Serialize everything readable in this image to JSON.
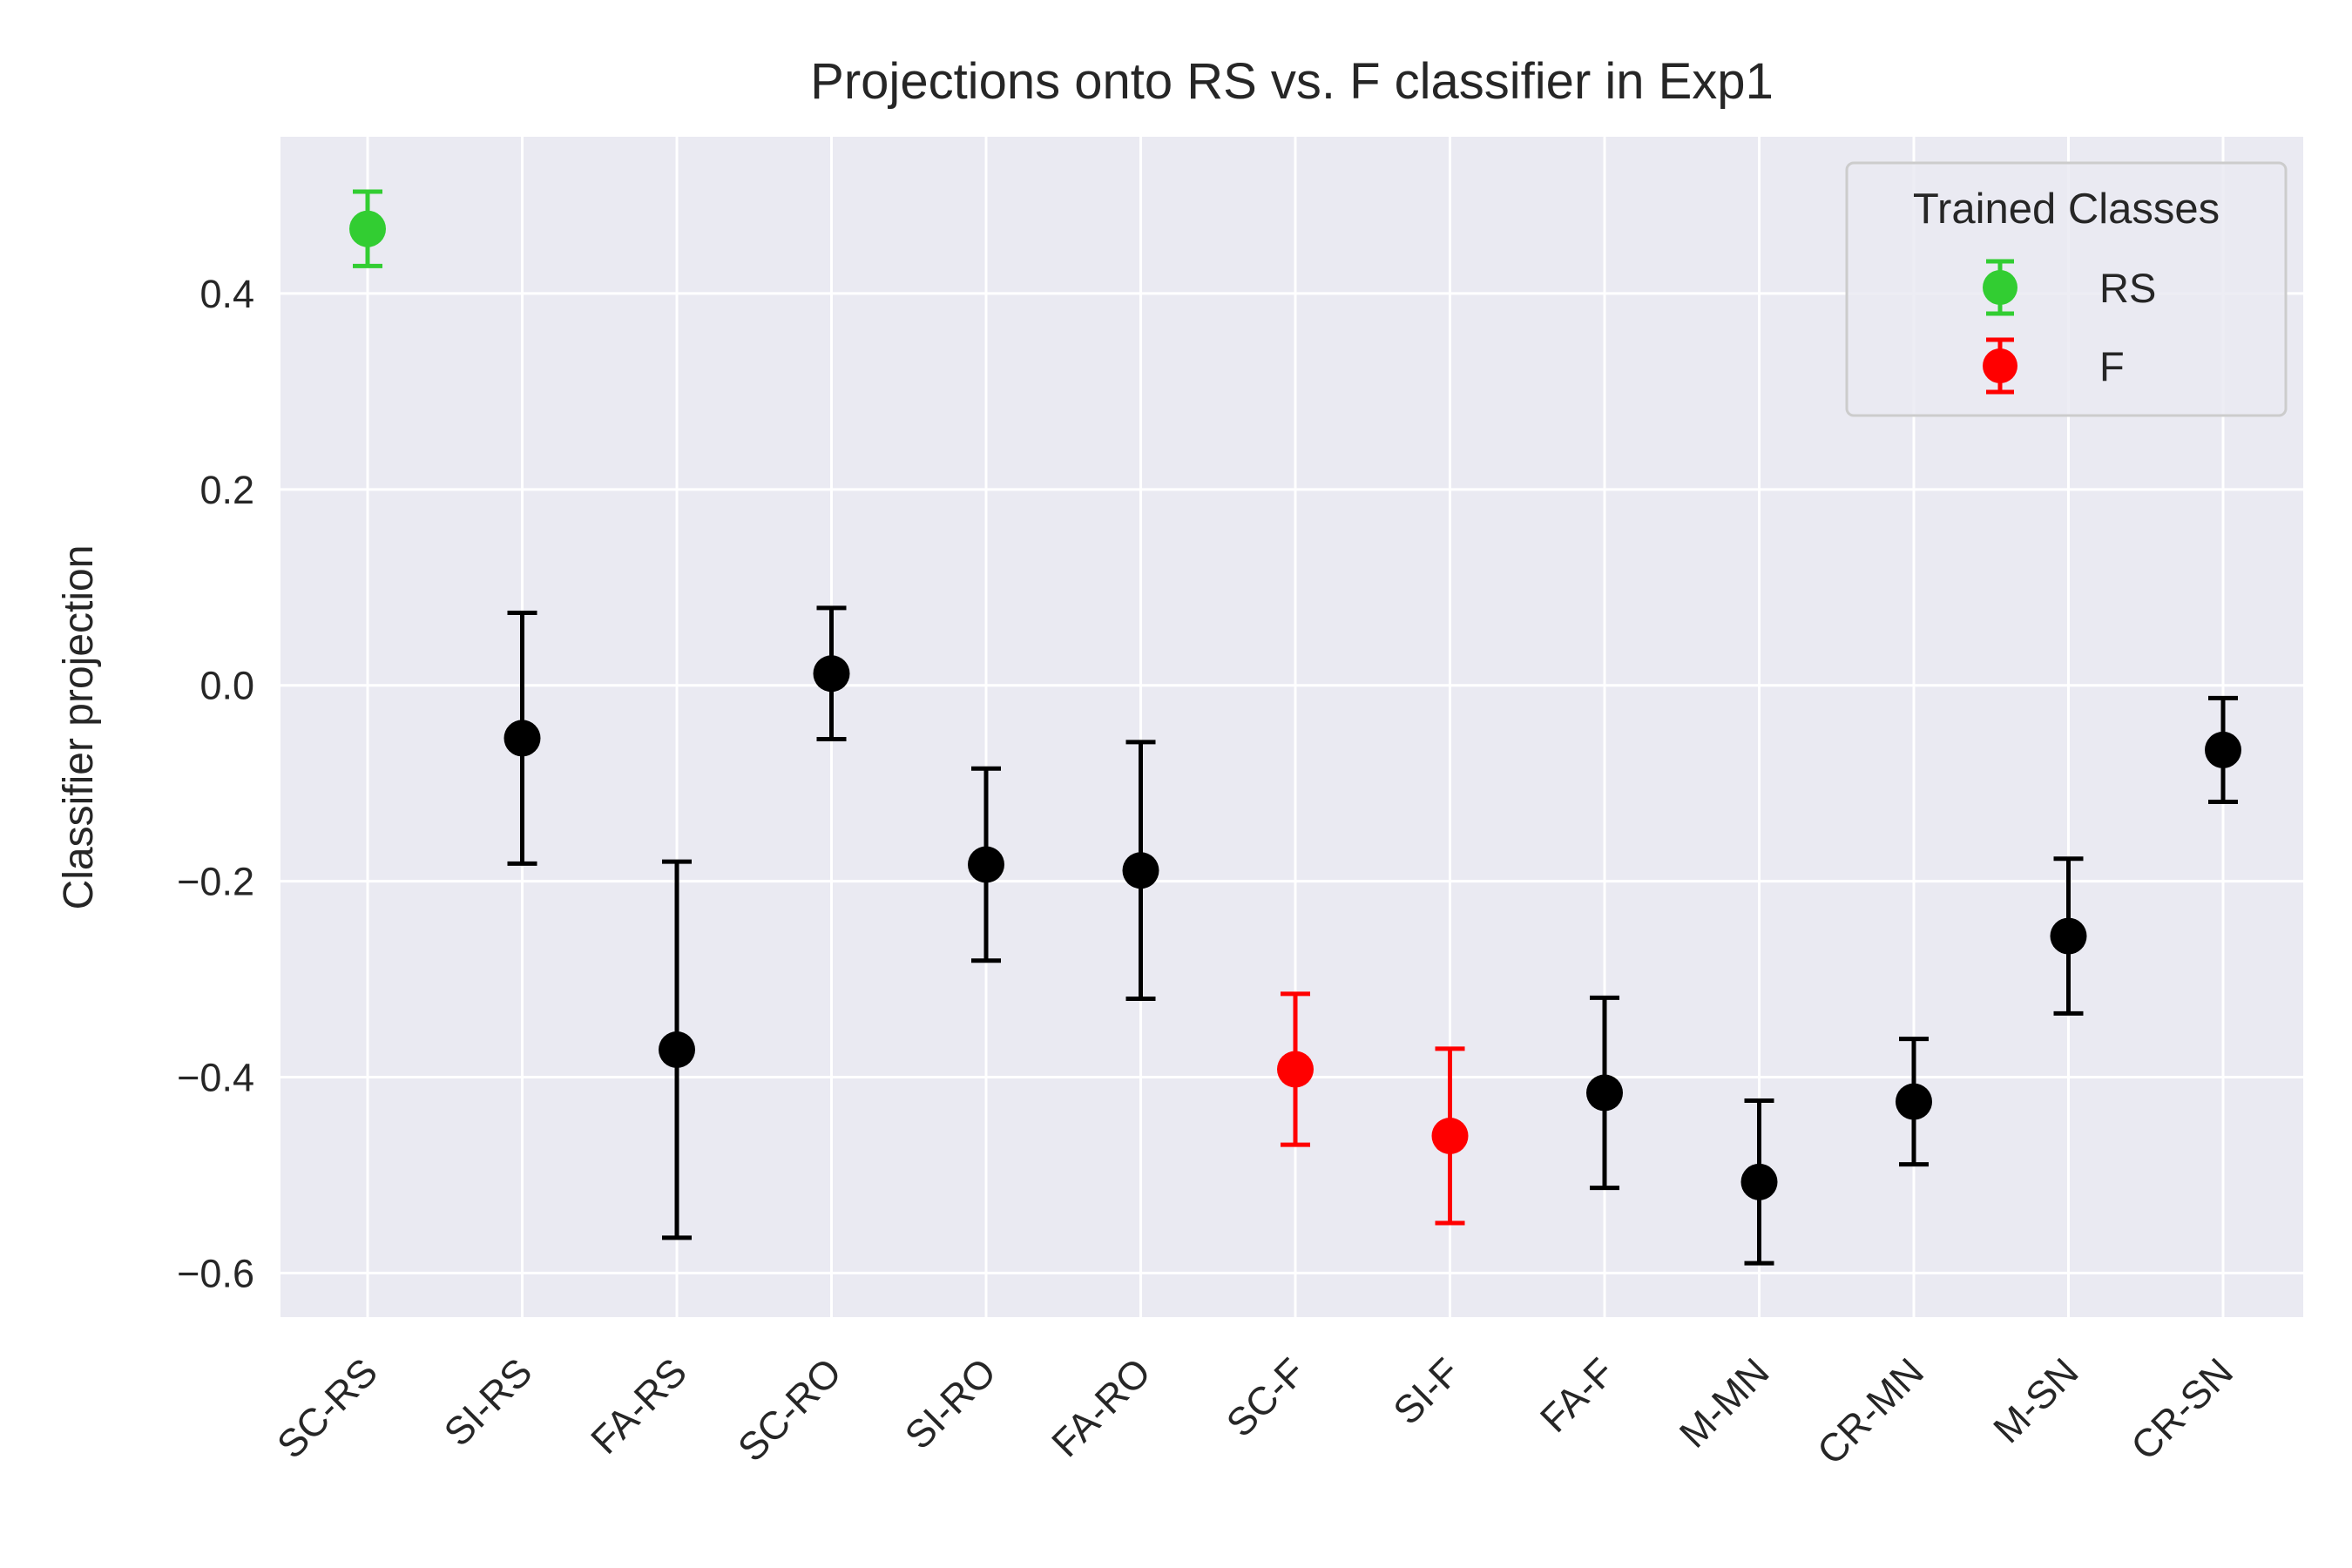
{
  "chart_data": {
    "type": "scatter",
    "title": "Projections onto RS vs. F classifier in Exp1",
    "ylabel": "Classifier projection",
    "xlabel": "",
    "ylim": [
      -0.645,
      0.56
    ],
    "yticks": [
      0.4,
      0.2,
      0.0,
      -0.2,
      -0.4,
      -0.6
    ],
    "ytick_labels": [
      "0.4",
      "0.2",
      "0.0",
      "−0.2",
      "−0.4",
      "−0.6"
    ],
    "grid": true,
    "categories": [
      "SC-RS",
      "SI-RS",
      "FA-RS",
      "SC-RO",
      "SI-RO",
      "FA-RO",
      "SC-F",
      "SI-F",
      "FA-F",
      "M-MN",
      "CR-MN",
      "M-SN",
      "CR-SN"
    ],
    "values": [
      0.466,
      -0.054,
      -0.372,
      0.012,
      -0.183,
      -0.189,
      -0.392,
      -0.46,
      -0.416,
      -0.507,
      -0.425,
      -0.256,
      -0.066
    ],
    "errors": [
      0.038,
      0.128,
      0.192,
      0.067,
      0.098,
      0.131,
      0.077,
      0.089,
      0.097,
      0.083,
      0.064,
      0.079,
      0.053
    ],
    "point_colors": [
      "#32cd32",
      "#000000",
      "#000000",
      "#000000",
      "#000000",
      "#000000",
      "#ff0000",
      "#ff0000",
      "#000000",
      "#000000",
      "#000000",
      "#000000",
      "#000000"
    ],
    "legend": {
      "title": "Trained Classes",
      "placement": "top-right",
      "entries": [
        {
          "label": "RS",
          "color": "#32cd32"
        },
        {
          "label": "F",
          "color": "#ff0000"
        }
      ]
    },
    "colors": {
      "plot_background": "#eaeaf2",
      "grid": "#ffffff",
      "text": "#262626"
    }
  }
}
